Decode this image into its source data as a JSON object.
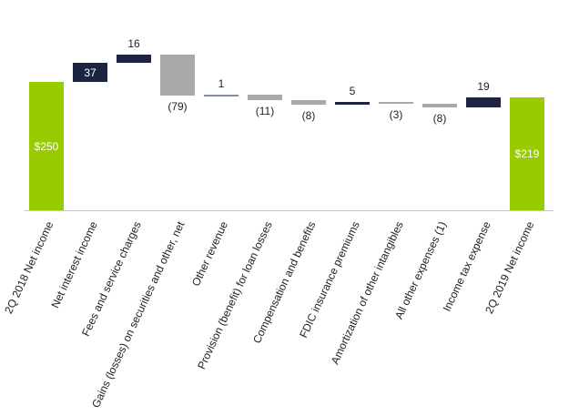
{
  "chart_data": {
    "type": "waterfall",
    "title": "",
    "xlabel": "",
    "ylabel": "",
    "units": "$ millions",
    "grid": false,
    "legend": null,
    "categories": [
      "2Q 2018 Net income",
      "Net interest income",
      "Fees and service charges",
      "Gains (losses) on securities and other, net",
      "Other revenue",
      "Provision (benefit) for loan losses",
      "Compensation and benefits",
      "FDIC insurance premiums",
      "Amortization of other intangibles",
      "All other expenses (1)",
      "Income tax expense",
      "2Q 2019 Net income"
    ],
    "values": [
      250,
      37,
      16,
      -79,
      1,
      -11,
      -8,
      5,
      -3,
      -8,
      19,
      219
    ],
    "labels": [
      "$250",
      "37",
      "16",
      "(79)",
      "1",
      "(11)",
      "(8)",
      "5",
      "(3)",
      "(8)",
      "19",
      "$219"
    ],
    "bar_kinds": [
      "total",
      "increase",
      "increase",
      "decrease",
      "increase",
      "decrease",
      "decrease",
      "increase",
      "decrease",
      "decrease",
      "increase",
      "total"
    ],
    "colors": {
      "total": "#99cc00",
      "increase": "#1b2542",
      "decrease": "#a9a9a9",
      "small_increase_line": "#7f8fa6"
    }
  }
}
